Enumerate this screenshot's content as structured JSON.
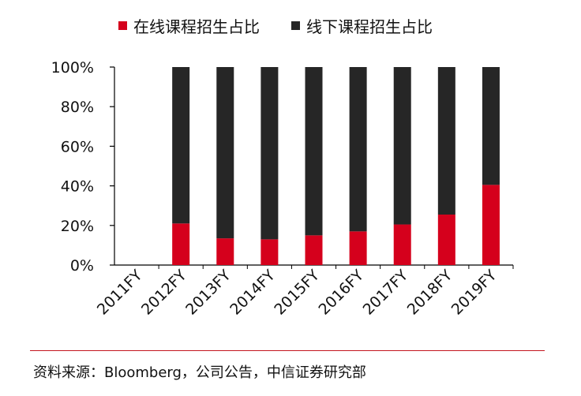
{
  "chart_data": {
    "type": "bar",
    "stacked": true,
    "categories": [
      "2011FY",
      "2012FY",
      "2013FY",
      "2014FY",
      "2015FY",
      "2016FY",
      "2017FY",
      "2018FY",
      "2019FY"
    ],
    "series": [
      {
        "name": "在线课程招生占比",
        "color": "#d5001c",
        "values": [
          0,
          21,
          13.5,
          13,
          15,
          17,
          20.5,
          25.5,
          40.5
        ]
      },
      {
        "name": "线下课程招生占比",
        "color": "#262626",
        "values": [
          0,
          79,
          86.5,
          87,
          85,
          83,
          79.5,
          74.5,
          59.5
        ]
      }
    ],
    "yticks": [
      "0%",
      "20%",
      "40%",
      "60%",
      "80%",
      "100%"
    ],
    "ylim": [
      0,
      100
    ],
    "title": "",
    "xlabel": "",
    "ylabel": "",
    "legend_position": "top"
  },
  "source_text": "资料来源：Bloomberg，公司公告，中信证券研究部"
}
